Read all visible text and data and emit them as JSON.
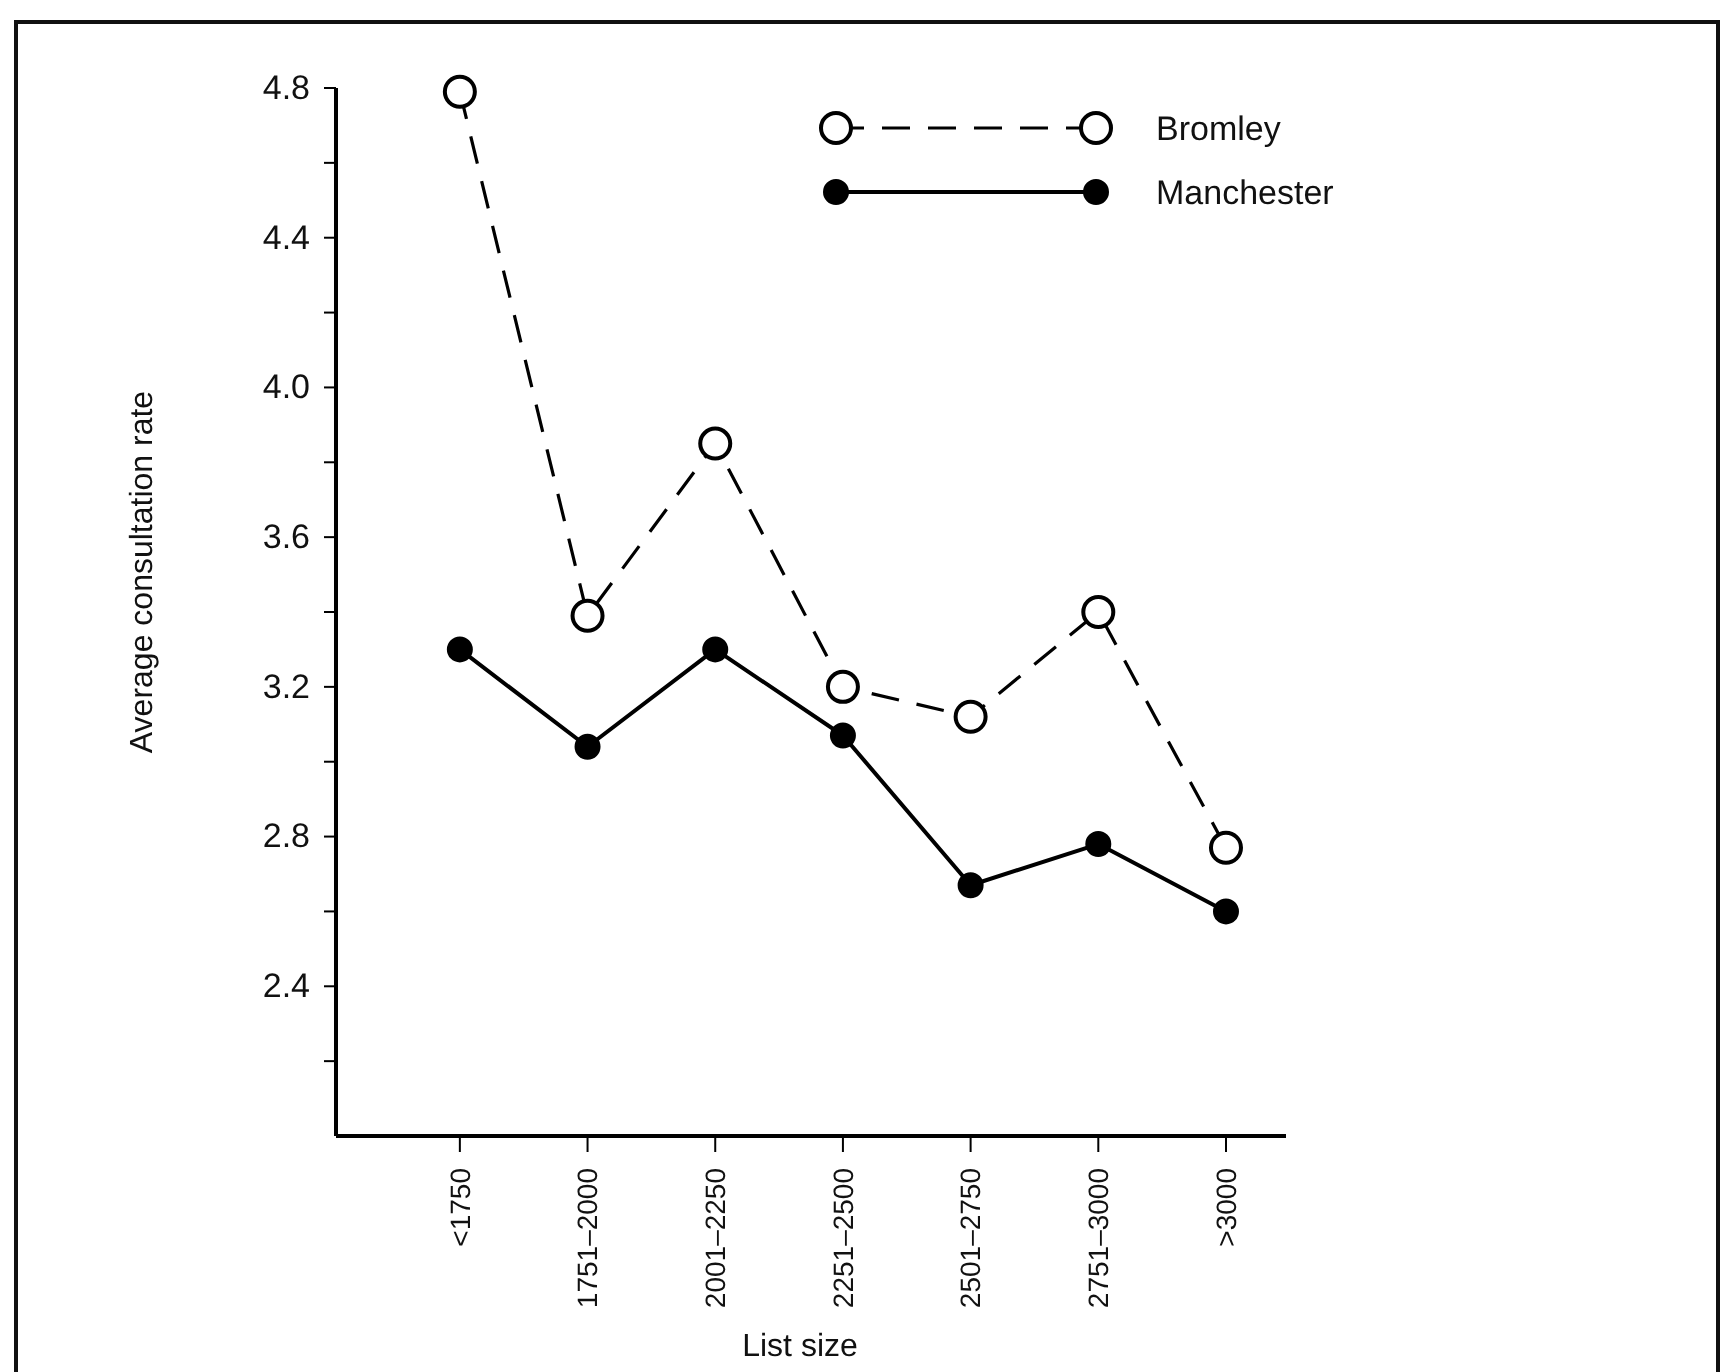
{
  "chart_data": {
    "type": "line",
    "xlabel": "List size",
    "ylabel": "Average consultation rate",
    "categories": [
      "<1750",
      "1751–2000",
      "2001–2250",
      "2251–2500",
      "2501–2750",
      "2751–3000",
      ">3000"
    ],
    "series": [
      {
        "name": "Bromley",
        "color": "#000000",
        "line_style": "dashed",
        "values": [
          4.79,
          3.39,
          3.85,
          3.2,
          3.12,
          3.4,
          2.77
        ]
      },
      {
        "name": "Manchester",
        "color": "#000000",
        "line_style": "solid",
        "values": [
          3.3,
          3.04,
          3.3,
          3.07,
          2.67,
          2.78,
          2.6
        ]
      }
    ],
    "ylim": [
      2.0,
      4.8
    ],
    "yticks": [
      {
        "value": 2.2,
        "label": null
      },
      2.4,
      {
        "value": 2.6,
        "label": null
      },
      2.8,
      {
        "value": 3.0,
        "label": null
      },
      3.2,
      {
        "value": 3.4,
        "label": null
      },
      3.6,
      {
        "value": 3.8,
        "label": null
      },
      {
        "value": 4.0,
        "label": "4.0"
      },
      {
        "value": 4.2,
        "label": null
      },
      4.4,
      {
        "value": 4.6,
        "label": null
      },
      4.8
    ],
    "marker": "circle",
    "grid": false,
    "legend": "top right"
  }
}
